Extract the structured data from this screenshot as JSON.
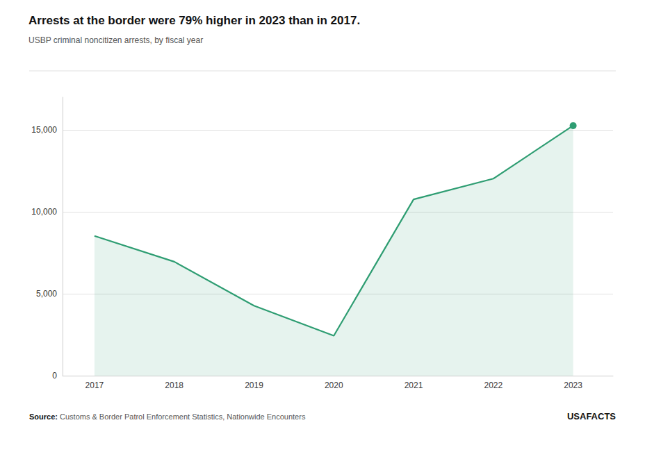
{
  "chart_data": {
    "type": "area",
    "title": "Arrests at the border were 79% higher in 2023 than in 2017.",
    "subtitle": "USBP criminal noncitizen arrests, by fiscal year",
    "annotations": [
      "Source: Customs & Border Patrol Enforcement Statistics, Nationwide Encounters",
      "USAFACTS"
    ],
    "x": [
      2017,
      2018,
      2019,
      2020,
      2021,
      2022,
      2023
    ],
    "values": [
      8531,
      6958,
      4269,
      2438,
      10763,
      12028,
      15267
    ],
    "color": "#2e9d72",
    "marker": "circle",
    "xlim": [
      2016.6,
      2023.5
    ],
    "xticks": [
      2017,
      2018,
      2019,
      2020,
      2021,
      2022,
      2023
    ],
    "ylim": [
      0,
      17000
    ],
    "yticks": [
      0,
      {
        "value": 5000,
        "label": "5,000"
      },
      {
        "value": 10000,
        "label": "10,000"
      },
      {
        "value": 15000,
        "label": "15,000"
      }
    ],
    "grid": true
  }
}
